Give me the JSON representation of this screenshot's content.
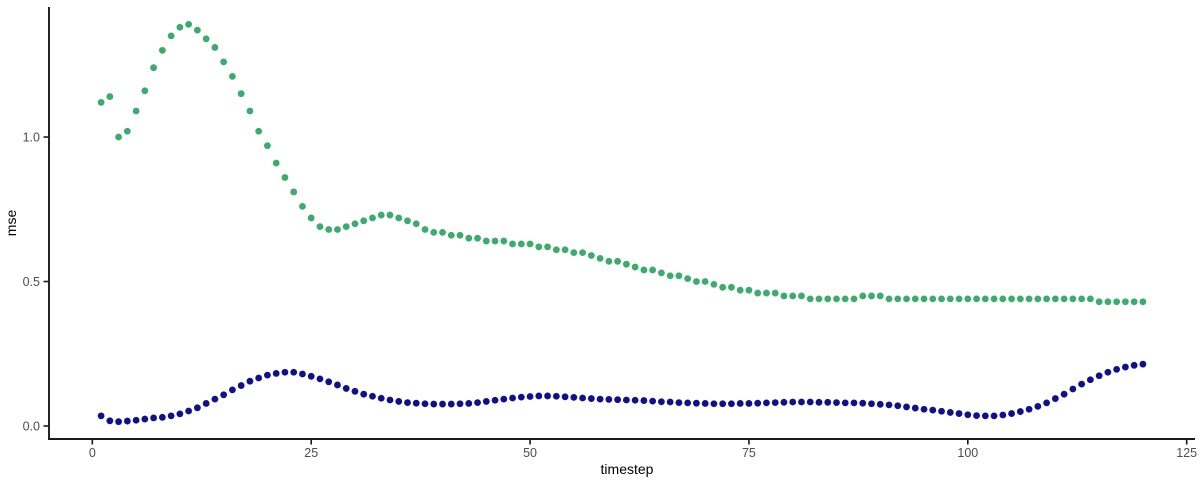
{
  "page": {
    "background_color": "#ffffff"
  },
  "chart_data": {
    "type": "scatter",
    "title": "",
    "xlabel": "timestep",
    "ylabel": "mse",
    "grid": false,
    "legend": false,
    "theme": "classic-axes-only",
    "axis_color": "#1a1a1a",
    "tick_label_color": "#4d4d4d",
    "axis_title_color": "#000000",
    "point_radius_px": 3.4,
    "xlim": [
      -4.95,
      125.95
    ],
    "ylim": [
      -0.045,
      1.45
    ],
    "x_tick_values": [
      0,
      25,
      50,
      75,
      100,
      125
    ],
    "x_tick_labels": [
      "0",
      "25",
      "50",
      "75",
      "100",
      "125"
    ],
    "y_tick_values": [
      0,
      0.5,
      1.0
    ],
    "y_tick_labels": [
      "0.0",
      "0.5",
      "1.0"
    ],
    "series": [
      {
        "name": "green-series",
        "color": "#3BAC6D",
        "x": [
          1,
          2,
          3,
          4,
          5,
          6,
          7,
          8,
          9,
          10,
          11,
          12,
          13,
          14,
          15,
          16,
          17,
          18,
          19,
          20,
          21,
          22,
          23,
          24,
          25,
          26,
          27,
          28,
          29,
          30,
          31,
          32,
          33,
          34,
          35,
          36,
          37,
          38,
          39,
          40,
          41,
          42,
          43,
          44,
          45,
          46,
          47,
          48,
          49,
          50,
          51,
          52,
          53,
          54,
          55,
          56,
          57,
          58,
          59,
          60,
          61,
          62,
          63,
          64,
          65,
          66,
          67,
          68,
          69,
          70,
          71,
          72,
          73,
          74,
          75,
          76,
          77,
          78,
          79,
          80,
          81,
          82,
          83,
          84,
          85,
          86,
          87,
          88,
          89,
          90,
          91,
          92,
          93,
          94,
          95,
          96,
          97,
          98,
          99,
          100,
          101,
          102,
          103,
          104,
          105,
          106,
          107,
          108,
          109,
          110,
          111,
          112,
          113,
          114,
          115,
          116,
          117,
          118,
          119,
          120
        ],
        "values": [
          1.12,
          1.14,
          1.0,
          1.02,
          1.09,
          1.16,
          1.24,
          1.3,
          1.35,
          1.38,
          1.39,
          1.37,
          1.34,
          1.31,
          1.26,
          1.21,
          1.15,
          1.09,
          1.02,
          0.97,
          0.91,
          0.86,
          0.81,
          0.76,
          0.72,
          0.69,
          0.68,
          0.68,
          0.69,
          0.7,
          0.71,
          0.72,
          0.73,
          0.73,
          0.72,
          0.71,
          0.7,
          0.68,
          0.67,
          0.67,
          0.66,
          0.66,
          0.65,
          0.65,
          0.64,
          0.64,
          0.64,
          0.63,
          0.63,
          0.63,
          0.62,
          0.62,
          0.61,
          0.61,
          0.6,
          0.6,
          0.59,
          0.58,
          0.57,
          0.57,
          0.56,
          0.55,
          0.54,
          0.54,
          0.53,
          0.52,
          0.52,
          0.51,
          0.5,
          0.5,
          0.49,
          0.48,
          0.48,
          0.47,
          0.47,
          0.46,
          0.46,
          0.46,
          0.45,
          0.45,
          0.45,
          0.44,
          0.44,
          0.44,
          0.44,
          0.44,
          0.44,
          0.45,
          0.45,
          0.45,
          0.44,
          0.44,
          0.44,
          0.44,
          0.44,
          0.44,
          0.44,
          0.44,
          0.44,
          0.44,
          0.44,
          0.44,
          0.44,
          0.44,
          0.44,
          0.44,
          0.44,
          0.44,
          0.44,
          0.44,
          0.44,
          0.44,
          0.44,
          0.44,
          0.43,
          0.43,
          0.43,
          0.43,
          0.43,
          0.43
        ]
      },
      {
        "name": "navy-series",
        "color": "#10108E",
        "x": [
          1,
          2,
          3,
          4,
          5,
          6,
          7,
          8,
          9,
          10,
          11,
          12,
          13,
          14,
          15,
          16,
          17,
          18,
          19,
          20,
          21,
          22,
          23,
          24,
          25,
          26,
          27,
          28,
          29,
          30,
          31,
          32,
          33,
          34,
          35,
          36,
          37,
          38,
          39,
          40,
          41,
          42,
          43,
          44,
          45,
          46,
          47,
          48,
          49,
          50,
          51,
          52,
          53,
          54,
          55,
          56,
          57,
          58,
          59,
          60,
          61,
          62,
          63,
          64,
          65,
          66,
          67,
          68,
          69,
          70,
          71,
          72,
          73,
          74,
          75,
          76,
          77,
          78,
          79,
          80,
          81,
          82,
          83,
          84,
          85,
          86,
          87,
          88,
          89,
          90,
          91,
          92,
          93,
          94,
          95,
          96,
          97,
          98,
          99,
          100,
          101,
          102,
          103,
          104,
          105,
          106,
          107,
          108,
          109,
          110,
          111,
          112,
          113,
          114,
          115,
          116,
          117,
          118,
          119,
          120
        ],
        "values": [
          0.035,
          0.018,
          0.015,
          0.017,
          0.02,
          0.024,
          0.028,
          0.03,
          0.035,
          0.042,
          0.052,
          0.063,
          0.078,
          0.093,
          0.108,
          0.125,
          0.14,
          0.155,
          0.166,
          0.176,
          0.182,
          0.186,
          0.186,
          0.18,
          0.172,
          0.163,
          0.153,
          0.142,
          0.13,
          0.12,
          0.11,
          0.103,
          0.096,
          0.09,
          0.085,
          0.081,
          0.079,
          0.077,
          0.076,
          0.076,
          0.076,
          0.077,
          0.078,
          0.081,
          0.085,
          0.089,
          0.093,
          0.097,
          0.1,
          0.102,
          0.104,
          0.104,
          0.103,
          0.101,
          0.099,
          0.097,
          0.095,
          0.093,
          0.092,
          0.091,
          0.09,
          0.089,
          0.088,
          0.086,
          0.084,
          0.083,
          0.081,
          0.08,
          0.079,
          0.078,
          0.077,
          0.077,
          0.077,
          0.078,
          0.078,
          0.079,
          0.08,
          0.081,
          0.082,
          0.083,
          0.083,
          0.083,
          0.082,
          0.082,
          0.081,
          0.08,
          0.08,
          0.079,
          0.077,
          0.075,
          0.073,
          0.07,
          0.066,
          0.062,
          0.058,
          0.055,
          0.051,
          0.047,
          0.043,
          0.039,
          0.036,
          0.035,
          0.035,
          0.038,
          0.043,
          0.05,
          0.058,
          0.068,
          0.08,
          0.095,
          0.11,
          0.128,
          0.145,
          0.16,
          0.174,
          0.186,
          0.196,
          0.204,
          0.21,
          0.214
        ]
      }
    ]
  }
}
